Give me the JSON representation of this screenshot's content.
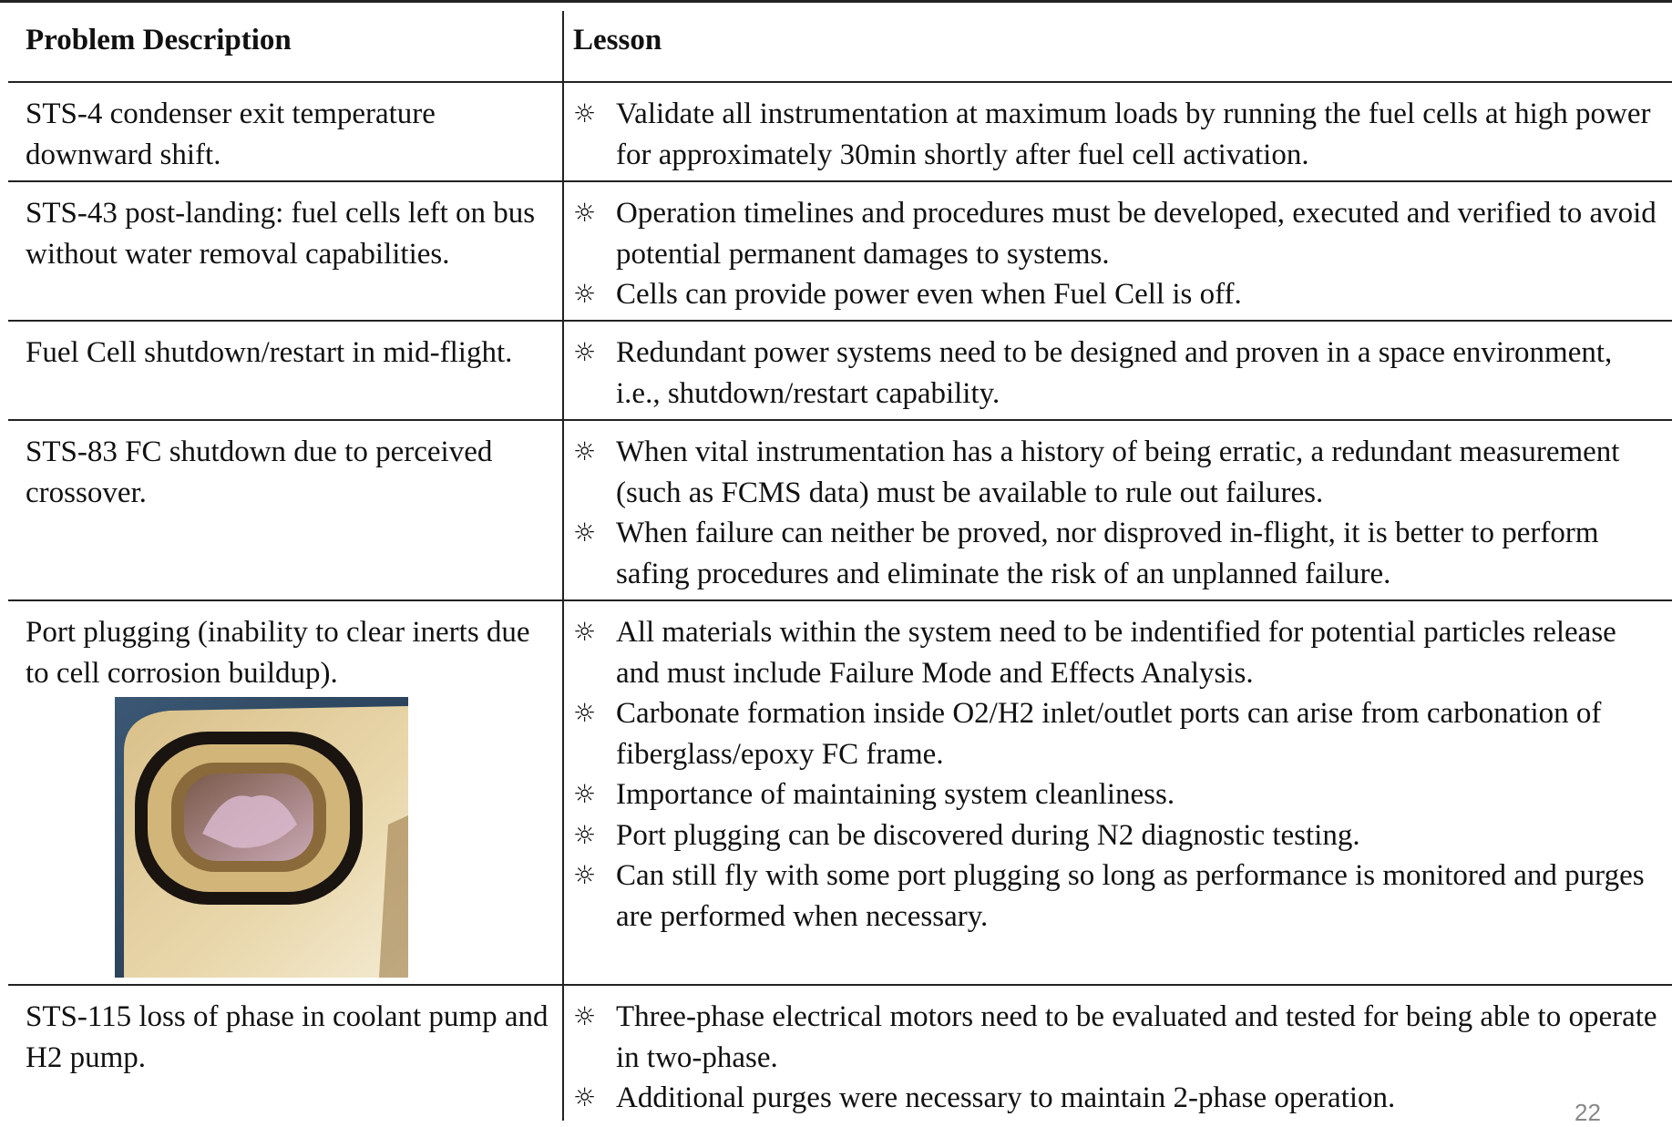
{
  "header": {
    "problem": "Problem Description",
    "lesson": "Lesson"
  },
  "bullet": "☼",
  "rows": [
    {
      "problem": "STS-4 condenser exit temperature downward shift.",
      "lessons": [
        "Validate all instrumentation at maximum loads by running the fuel cells at high power for approximately 30min shortly after fuel cell activation."
      ]
    },
    {
      "problem": "STS-43 post-landing: fuel cells left on bus without water removal capabilities.",
      "lessons": [
        "Operation timelines and procedures must be developed, executed and verified to avoid potential permanent damages to systems.",
        "Cells can provide power even when Fuel Cell is off."
      ]
    },
    {
      "problem": "Fuel Cell shutdown/restart in mid-flight.",
      "lessons": [
        "Redundant power systems need to be designed and proven in a space environment, i.e., shutdown/restart capability."
      ]
    },
    {
      "problem": "STS-83 FC shutdown due to perceived crossover.",
      "lessons": [
        "When vital instrumentation has a history of being erratic, a redundant measurement (such as FCMS data) must be available to rule out failures.",
        "When failure can neither be proved, nor disproved in-flight, it is better to perform safing procedures and eliminate the risk of an unplanned failure."
      ]
    },
    {
      "problem": "Port plugging (inability to clear inerts due to cell corrosion buildup).",
      "lessons": [
        "All materials within the system need to be indentified for potential particles release and must include Failure Mode and Effects Analysis.",
        "Carbonate formation inside O2/H2 inlet/outlet ports can arise from carbonation of fiberglass/epoxy FC frame.",
        "Importance of maintaining system cleanliness.",
        "Port plugging can be discovered during N2 diagnostic testing.",
        "Can still fly with some port plugging so long as performance is monitored and purges are performed when necessary."
      ]
    },
    {
      "problem": "STS-115 loss of phase in coolant pump and H2 pump.",
      "lessons": [
        "Three-phase electrical motors need to be evaluated and tested for being able to operate in two-phase.",
        "Additional purges were necessary to maintain 2-phase operation."
      ]
    }
  ],
  "page_number": "22"
}
